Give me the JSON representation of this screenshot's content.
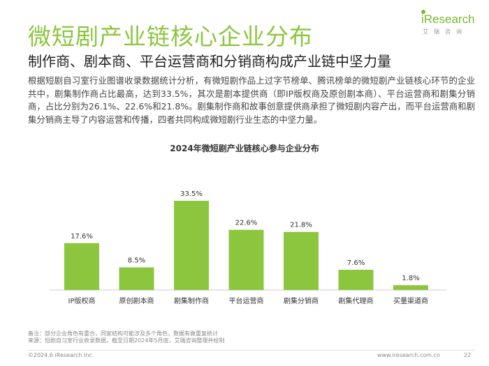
{
  "header": {
    "title": "微短剧产业链核心企业分布",
    "subtitle": "制作商、剧本商、平台运营商和分销商构成产业链中坚力量"
  },
  "logo": {
    "i": "i",
    "word": "Research",
    "cn": "艾瑞咨询",
    "color": "#7ab82e"
  },
  "body_text": "根据短剧自习室行业图谱收录数据统计分析，有微短剧作品上过字节榜单、腾讯榜单的微短剧产业链核心环节的企业共中，剧集制作商占比最高，达到33.5%，其次是剧本提供商（即IP版权商及原创剧本商）、平台运营商和剧集分销商，占比分别为26.1%、22.6%和21.8%。剧集制作商和故事创意提供商承担了微短剧内容产出，而平台运营商和剧集分销商主导了内容运营和传播，四者共同构成微短剧行业生态的中坚力量。",
  "chart_data": {
    "type": "bar",
    "title": "2024年微短剧产业链核心参与企业分布",
    "categories": [
      "IP版权商",
      "原创剧本商",
      "剧集制作商",
      "平台运营商",
      "剧集分销商",
      "剧集代理商",
      "买量渠道商"
    ],
    "values": [
      17.6,
      8.5,
      33.5,
      22.6,
      21.8,
      7.6,
      1.8
    ],
    "labels": [
      "17.6%",
      "8.5%",
      "33.5%",
      "22.6%",
      "21.8%",
      "7.6%",
      "1.8%"
    ],
    "unit": "%",
    "ylim": [
      0,
      35
    ],
    "xlabel": "",
    "ylabel": "",
    "grid": false,
    "bar_color": "#8cc63f"
  },
  "notes": {
    "line1": "备注：部分企业角色有重合，同家结构可能涉及多个角色，数据有做重复统计",
    "line2": "来源：短剧自习室行业收录数据，截至日期2024年5月底，艾瑞咨询整理并绘制"
  },
  "footer": {
    "copyright": "©2024.6 iResearch Inc.",
    "site": "www.iresearch.com.cn",
    "page": "22"
  },
  "colors": {
    "accent": "#8cc63f",
    "text": "#333333"
  }
}
